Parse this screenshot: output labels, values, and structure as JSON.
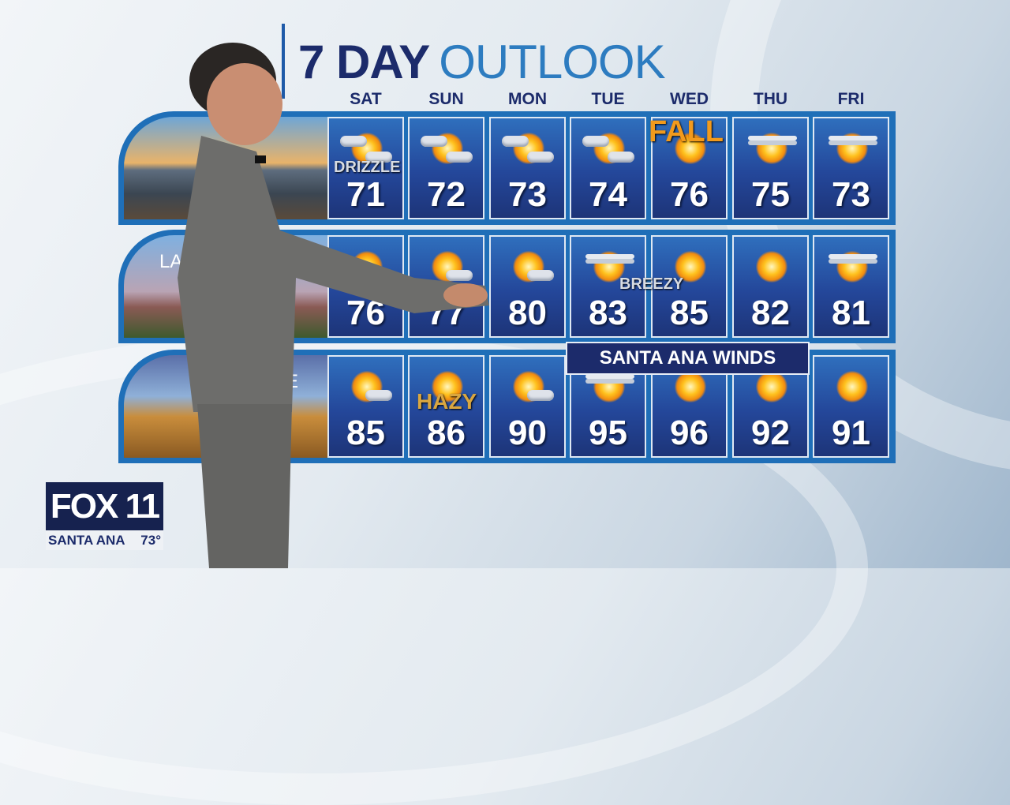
{
  "title": {
    "bold": "7 DAY",
    "light": "OUTLOOK"
  },
  "days": [
    "SAT",
    "SUN",
    "MON",
    "TUE",
    "WED",
    "THU",
    "FRI"
  ],
  "rows": [
    {
      "label": "",
      "photo": "coast",
      "icons": [
        "sun-cloud-heavy",
        "sun-cloud",
        "sun-cloud",
        "sun-cloud",
        "sun",
        "sun-haze",
        "sun-haze"
      ],
      "temps": [
        "71",
        "72",
        "73",
        "74",
        "76",
        "75",
        "73"
      ]
    },
    {
      "label": "LA",
      "photo": "downtown",
      "icons": [
        "sun",
        "sun-cloud",
        "sun-cloud",
        "sun-haze",
        "sun",
        "sun",
        "sun-haze"
      ],
      "temps": [
        "76",
        "77",
        "80",
        "83",
        "85",
        "82",
        "81"
      ]
    },
    {
      "label": "E",
      "photo": "inland",
      "icons": [
        "sun-cloud",
        "sun",
        "sun-cloud",
        "sun-haze",
        "sun",
        "sun",
        "sun"
      ],
      "temps": [
        "85",
        "86",
        "90",
        "95",
        "96",
        "92",
        "91"
      ]
    }
  ],
  "tags": {
    "drizzle": "DRIZZLE",
    "fall": "FALL",
    "breezy": "BREEZY",
    "hazy": "HAZY"
  },
  "banner": "SANTA ANA WINDS",
  "logo": {
    "brand": "FOX 11",
    "city": "SANTA ANA",
    "temp": "73°"
  },
  "colors": {
    "navy": "#1c2b6b",
    "accent": "#2d7cc0",
    "frame": "#1f6fb8"
  }
}
